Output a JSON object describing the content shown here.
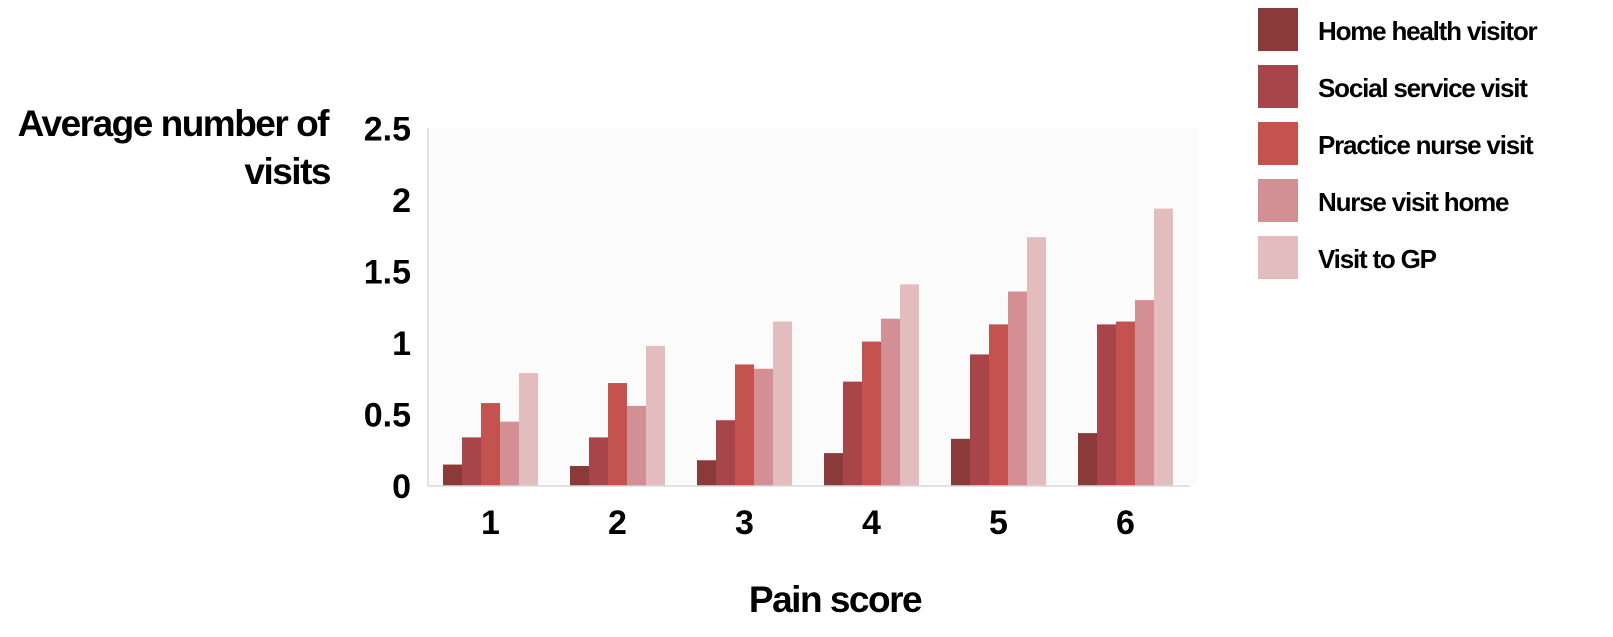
{
  "chart_data": {
    "type": "bar",
    "xlabel": "Pain score",
    "ylabel_lines": [
      "Average number of",
      "visits"
    ],
    "categories": [
      "1",
      "2",
      "3",
      "4",
      "5",
      "6"
    ],
    "ylim": [
      0,
      2.5
    ],
    "yticks": [
      "0",
      "0.5",
      "1",
      "1.5",
      "2",
      "2.5"
    ],
    "legend_position": "top-right",
    "grid": false,
    "series": [
      {
        "name": "Home health visitor",
        "color": "#8b3a3a",
        "values": [
          0.15,
          0.14,
          0.18,
          0.23,
          0.33,
          0.37
        ]
      },
      {
        "name": "Social service visit",
        "color": "#a8454b",
        "values": [
          0.34,
          0.34,
          0.46,
          0.73,
          0.92,
          1.13
        ]
      },
      {
        "name": "Practice nurse visit",
        "color": "#c4524f",
        "values": [
          0.58,
          0.72,
          0.85,
          1.01,
          1.13,
          1.15
        ]
      },
      {
        "name": "Nurse visit home",
        "color": "#d48f94",
        "values": [
          0.45,
          0.56,
          0.82,
          1.17,
          1.36,
          1.3
        ]
      },
      {
        "name": "Visit to GP",
        "color": "#e3bdbd",
        "values": [
          0.79,
          0.98,
          1.15,
          1.41,
          1.74,
          1.94
        ]
      }
    ]
  }
}
